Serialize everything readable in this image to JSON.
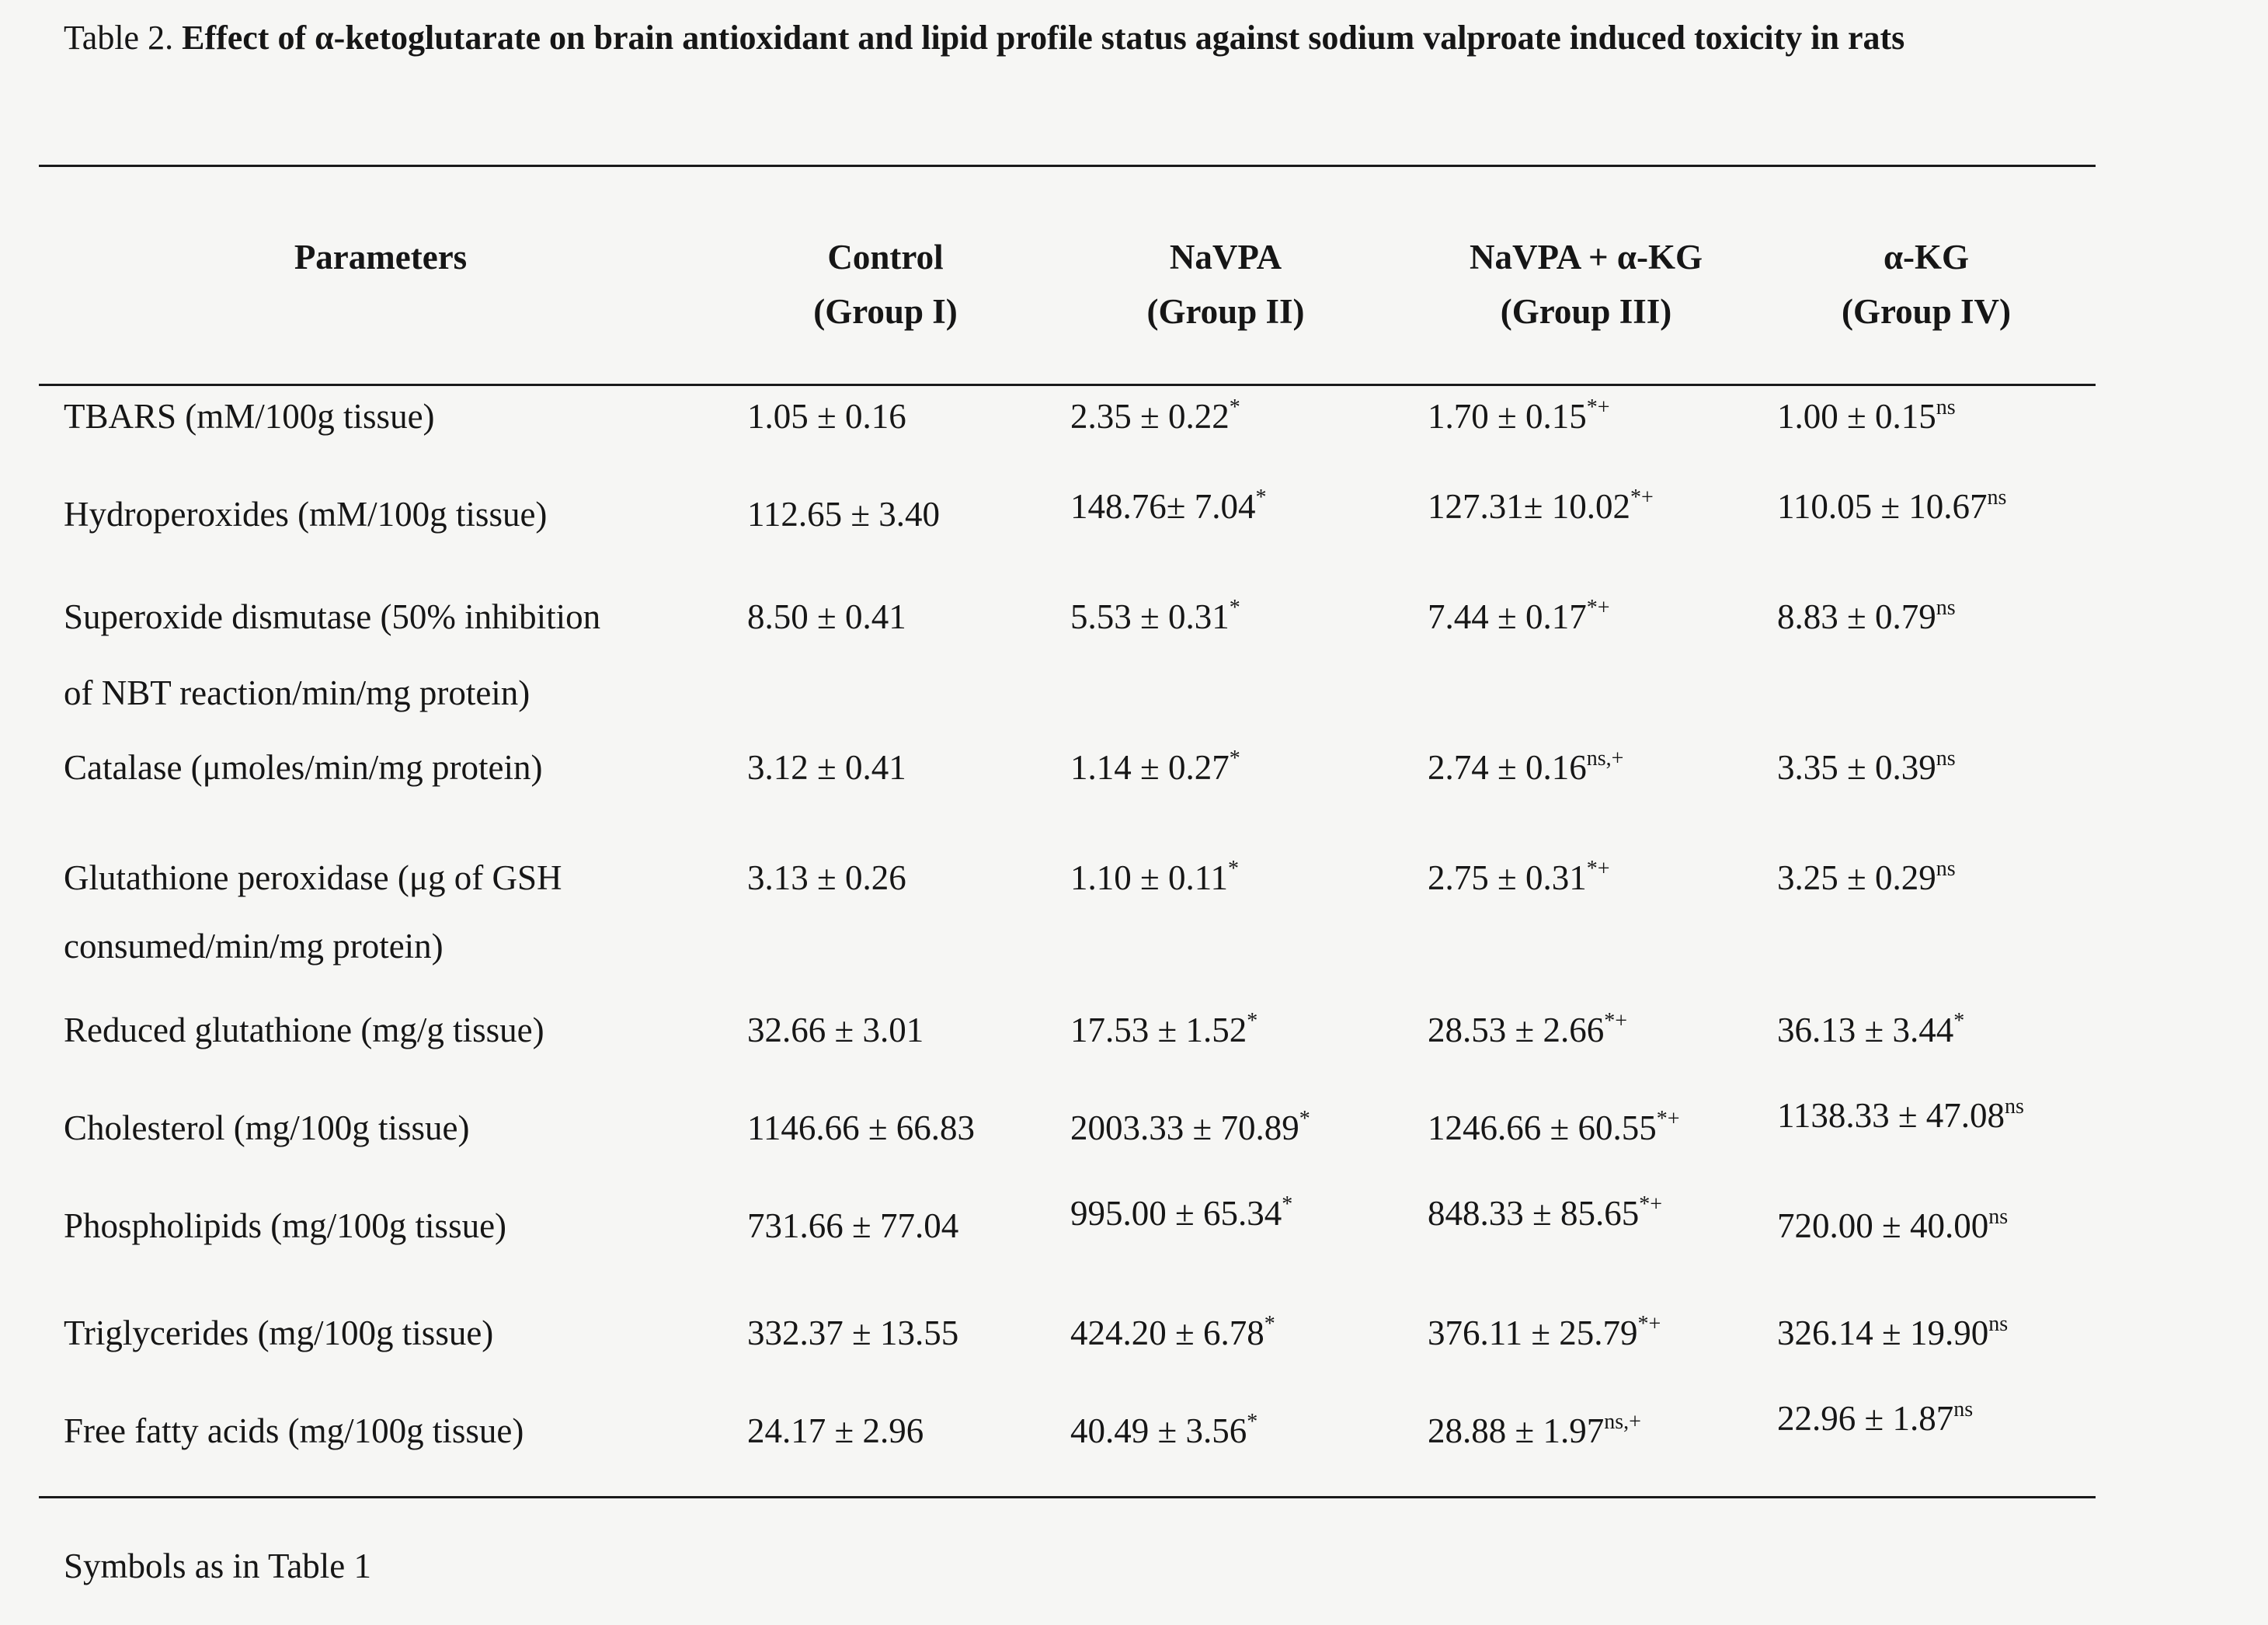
{
  "caption": {
    "prefix": "Table 2. ",
    "title_bold": "Effect of α-ketoglutarate on brain antioxidant and lipid profile status against sodium valproate induced toxicity in rats"
  },
  "headers": [
    {
      "line1": "Parameters",
      "line2": ""
    },
    {
      "line1": "Control",
      "line2": "(Group I)"
    },
    {
      "line1": "NaVPA",
      "line2": "(Group II)"
    },
    {
      "line1": "NaVPA + α-KG",
      "line2": "(Group III)"
    },
    {
      "line1": "α-KG",
      "line2": "(Group IV)"
    }
  ],
  "rows": [
    {
      "param": [
        "TBARS (mM/100g tissue)"
      ],
      "values": [
        [
          "1.05 ± 0.16",
          ""
        ],
        [
          "2.35 ± 0.22",
          "*"
        ],
        [
          "1.70 ± 0.15",
          "*+"
        ],
        [
          "1.00 ± 0.15",
          "ns"
        ]
      ]
    },
    {
      "param": [
        "Hydroperoxides (mM/100g tissue)"
      ],
      "values": [
        [
          "112.65 ± 3.40",
          ""
        ],
        [
          "148.76± 7.04",
          "*"
        ],
        [
          "127.31± 10.02",
          "*+"
        ],
        [
          "110.05 ± 10.67",
          "ns"
        ]
      ]
    },
    {
      "param": [
        "Superoxide dismutase (50% inhibition",
        "of NBT reaction/min/mg protein)"
      ],
      "values": [
        [
          "8.50 ± 0.41",
          ""
        ],
        [
          "5.53 ± 0.31",
          "*"
        ],
        [
          "7.44 ± 0.17",
          "*+"
        ],
        [
          "8.83 ± 0.79",
          "ns"
        ]
      ]
    },
    {
      "param": [
        "Catalase (μmoles/min/mg protein)"
      ],
      "values": [
        [
          "3.12 ± 0.41",
          ""
        ],
        [
          "1.14 ± 0.27",
          "*"
        ],
        [
          "2.74 ± 0.16",
          "ns,+"
        ],
        [
          "3.35 ± 0.39",
          "ns"
        ]
      ]
    },
    {
      "param": [
        "Glutathione peroxidase (μg of GSH",
        "consumed/min/mg protein)"
      ],
      "values": [
        [
          "3.13 ± 0.26",
          ""
        ],
        [
          "1.10 ± 0.11",
          "*"
        ],
        [
          "2.75 ± 0.31",
          "*+"
        ],
        [
          "3.25 ± 0.29",
          "ns"
        ]
      ]
    },
    {
      "param": [
        "Reduced glutathione (mg/g tissue)"
      ],
      "values": [
        [
          "32.66 ± 3.01",
          ""
        ],
        [
          "17.53 ± 1.52",
          "*"
        ],
        [
          "28.53 ± 2.66",
          "*+"
        ],
        [
          "36.13 ± 3.44",
          "*"
        ]
      ]
    },
    {
      "param": [
        "Cholesterol (mg/100g tissue)"
      ],
      "values": [
        [
          "1146.66 ± 66.83",
          ""
        ],
        [
          "2003.33 ± 70.89",
          "*"
        ],
        [
          "1246.66 ± 60.55",
          "*+"
        ],
        [
          "1138.33 ± 47.08",
          "ns"
        ]
      ]
    },
    {
      "param": [
        "Phospholipids (mg/100g tissue)"
      ],
      "values": [
        [
          "731.66 ± 77.04",
          ""
        ],
        [
          "995.00 ± 65.34",
          "*"
        ],
        [
          "848.33 ± 85.65",
          "*+"
        ],
        [
          "720.00 ± 40.00",
          "ns"
        ]
      ]
    },
    {
      "param": [
        "Triglycerides (mg/100g tissue)"
      ],
      "values": [
        [
          "332.37 ± 13.55",
          ""
        ],
        [
          "424.20 ± 6.78",
          "*"
        ],
        [
          "376.11 ± 25.79",
          "*+"
        ],
        [
          "326.14 ± 19.90",
          "ns"
        ]
      ]
    },
    {
      "param": [
        "Free fatty acids (mg/100g tissue)"
      ],
      "values": [
        [
          "24.17 ± 2.96",
          ""
        ],
        [
          "40.49 ± 3.56",
          "*"
        ],
        [
          "28.88 ± 1.97",
          "ns,+"
        ],
        [
          "22.96 ± 1.87",
          "ns"
        ]
      ]
    }
  ],
  "footnote": "Symbols as in Table 1"
}
